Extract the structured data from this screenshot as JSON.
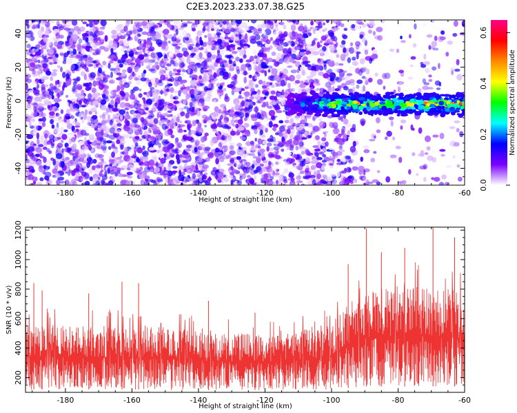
{
  "title": "C2E3.2023.233.07.38.G25",
  "chart_data": [
    {
      "type": "heatmap",
      "xlabel": "Height of straight line (km)",
      "ylabel": "Frequency (Hz)",
      "xlim": [
        -192,
        -60
      ],
      "ylim": [
        -50,
        48
      ],
      "xticks": [
        -180,
        -160,
        -140,
        -120,
        -100,
        -80,
        -60
      ],
      "yticks": [
        -40,
        -20,
        0,
        20,
        40
      ],
      "colorbar": {
        "label": "Normalized spectral amplitude",
        "range": [
          0.0,
          0.65
        ],
        "ticks": [
          0.0,
          0.2,
          0.4,
          0.6
        ],
        "stops": [
          "#ffffff",
          "#7b00ff",
          "#0000ff",
          "#00ffff",
          "#00ff00",
          "#ffff00",
          "#ff8800",
          "#ff0000",
          "#ff0088"
        ]
      },
      "features": [
        {
          "name": "signal_band",
          "x_range": [
            -113,
            -60
          ],
          "frequency_hz": -2,
          "width_hz": 12,
          "peak_amplitude": 0.45
        }
      ],
      "background_density": {
        "x_range": [
          -192,
          -105
        ],
        "level": "dense"
      }
    },
    {
      "type": "line",
      "xlabel": "Height of straight line (km)",
      "ylabel": "SNR (10 * v/v)",
      "xlim": [
        -192,
        -60
      ],
      "ylim": [
        100,
        1220
      ],
      "xticks": [
        -180,
        -160,
        -140,
        -120,
        -100,
        -80,
        -60
      ],
      "yticks": [
        200,
        400,
        600,
        800,
        1000,
        1200
      ],
      "color": "#ee3333",
      "envelope": {
        "x": [
          -192,
          -180,
          -170,
          -160,
          -150,
          -140,
          -130,
          -120,
          -110,
          -100,
          -95,
          -90,
          -85,
          -80,
          -75,
          -70,
          -65,
          -60
        ],
        "low": [
          120,
          120,
          120,
          120,
          115,
          115,
          115,
          115,
          115,
          120,
          130,
          140,
          140,
          140,
          140,
          140,
          140,
          140
        ],
        "high": [
          560,
          560,
          550,
          560,
          540,
          520,
          500,
          500,
          520,
          560,
          700,
          800,
          800,
          820,
          820,
          830,
          820,
          780
        ]
      },
      "spikes": [
        {
          "x": -189.5,
          "y": 840
        },
        {
          "x": -187,
          "y": 790
        },
        {
          "x": -173,
          "y": 770
        },
        {
          "x": -163,
          "y": 850
        },
        {
          "x": -158,
          "y": 840
        },
        {
          "x": -137,
          "y": 720
        },
        {
          "x": -123,
          "y": 640
        },
        {
          "x": -95,
          "y": 970
        },
        {
          "x": -89.5,
          "y": 1210
        },
        {
          "x": -85,
          "y": 1050
        },
        {
          "x": -78,
          "y": 1080
        },
        {
          "x": -69.5,
          "y": 1220
        },
        {
          "x": -63,
          "y": 1150
        }
      ]
    }
  ]
}
